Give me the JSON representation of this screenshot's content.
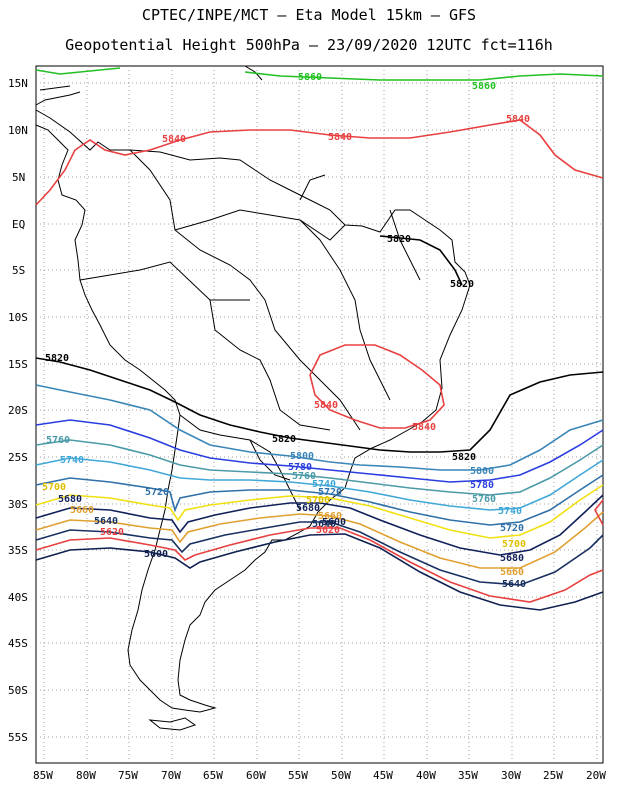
{
  "header": {
    "line1": "CPTEC/INPE/MCT –  Eta Model 15km – GFS",
    "line2": "Geopotential Height 500hPa – 23/09/2020 12UTC fct=116h"
  },
  "axes": {
    "lat_labels": [
      "15N",
      "10N",
      "5N",
      "EQ",
      "5S",
      "10S",
      "15S",
      "20S",
      "25S",
      "30S",
      "35S",
      "40S",
      "45S",
      "50S",
      "55S"
    ],
    "lon_labels": [
      "85W",
      "80W",
      "75W",
      "70W",
      "65W",
      "60W",
      "55W",
      "50W",
      "45W",
      "40W",
      "35W",
      "30W",
      "25W",
      "20W"
    ]
  },
  "contours": [
    {
      "value": "5860",
      "color": "#22c022"
    },
    {
      "value": "5840",
      "color": "#e84040"
    },
    {
      "value": "5820",
      "color": "#000000"
    },
    {
      "value": "5800",
      "color": "#3a86b8"
    },
    {
      "value": "5780",
      "color": "#2a3ee0"
    },
    {
      "value": "5760",
      "color": "#4a9aa8"
    },
    {
      "value": "5740",
      "color": "#40a8d8"
    },
    {
      "value": "5720",
      "color": "#3070a8"
    },
    {
      "value": "5700",
      "color": "#f0e010"
    },
    {
      "value": "5680",
      "color": "#10205a"
    },
    {
      "value": "5660",
      "color": "#e0a030"
    },
    {
      "value": "5640",
      "color": "#183060"
    },
    {
      "value": "5620",
      "color": "#e84040"
    },
    {
      "value": "5600",
      "color": "#102050"
    }
  ],
  "labels": {
    "green_top": "5860",
    "green_right": "5860",
    "red_left": "5840",
    "red_mid": "5840",
    "red_right": "5840",
    "blk_ne1": "5820",
    "blk_ne2": "5820",
    "blk_w": "5820",
    "blk_mid": "5820",
    "blk_e": "5820",
    "ring_w": "5840",
    "ring_e": "5840",
    "c5760_w": "5760",
    "c5740_w": "5740",
    "c5700_w": "5700",
    "c5680_w": "5680",
    "c5660_w": "5660",
    "c5640_w": "5640",
    "c5620_w": "5620",
    "c5600_w": "5600",
    "c5720_w": "5720",
    "c5800_c": "5800",
    "c5780_c": "5780",
    "c5760_c": "5760",
    "c5740_c": "5740",
    "c5720_c": "5720",
    "c5700_c": "5700",
    "c5680_c": "5680",
    "c5660_c": "5660",
    "c5640_c": "5640",
    "c5620_c": "5620",
    "c5600_c": "5600",
    "c5800_e": "5800",
    "c5780_e": "5780",
    "c5760_e": "5760",
    "c5740_e": "5740",
    "c5720_e": "5720",
    "c5700_e": "5700",
    "c5680_e": "5680",
    "c5660_e": "5660",
    "c5640_e": "5640"
  }
}
